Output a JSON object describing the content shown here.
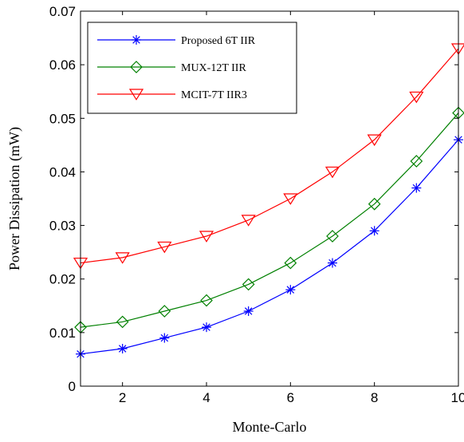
{
  "chart_data": {
    "type": "line",
    "title": "",
    "xlabel": "Monte-Carlo",
    "ylabel": "Power Dissipation (mW)",
    "x": [
      1,
      2,
      3,
      4,
      5,
      6,
      7,
      8,
      9,
      10
    ],
    "xlim": [
      1,
      10
    ],
    "ylim": [
      0,
      0.07
    ],
    "xticks": [
      "2",
      "4",
      "6",
      "8",
      "10"
    ],
    "xtick_values": [
      2,
      4,
      6,
      8,
      10
    ],
    "yticks": [
      "0",
      "0.01",
      "0.02",
      "0.03",
      "0.04",
      "0.05",
      "0.06",
      "0.07"
    ],
    "ytick_values": [
      0,
      0.01,
      0.02,
      0.03,
      0.04,
      0.05,
      0.06,
      0.07
    ],
    "grid": false,
    "legend_position": "top-left",
    "series": [
      {
        "name": "Proposed 6T IIR",
        "color": "#0000ff",
        "marker": "asterisk",
        "values": [
          0.006,
          0.007,
          0.009,
          0.011,
          0.014,
          0.018,
          0.023,
          0.029,
          0.037,
          0.046
        ]
      },
      {
        "name": "MUX-12T IIR",
        "color": "#008000",
        "marker": "diamond",
        "values": [
          0.011,
          0.012,
          0.014,
          0.016,
          0.019,
          0.023,
          0.028,
          0.034,
          0.042,
          0.051
        ]
      },
      {
        "name": "MCIT-7T IIR3",
        "color": "#ff0000",
        "marker": "triangle-down",
        "values": [
          0.023,
          0.024,
          0.026,
          0.028,
          0.031,
          0.035,
          0.04,
          0.046,
          0.054,
          0.063
        ]
      }
    ]
  }
}
